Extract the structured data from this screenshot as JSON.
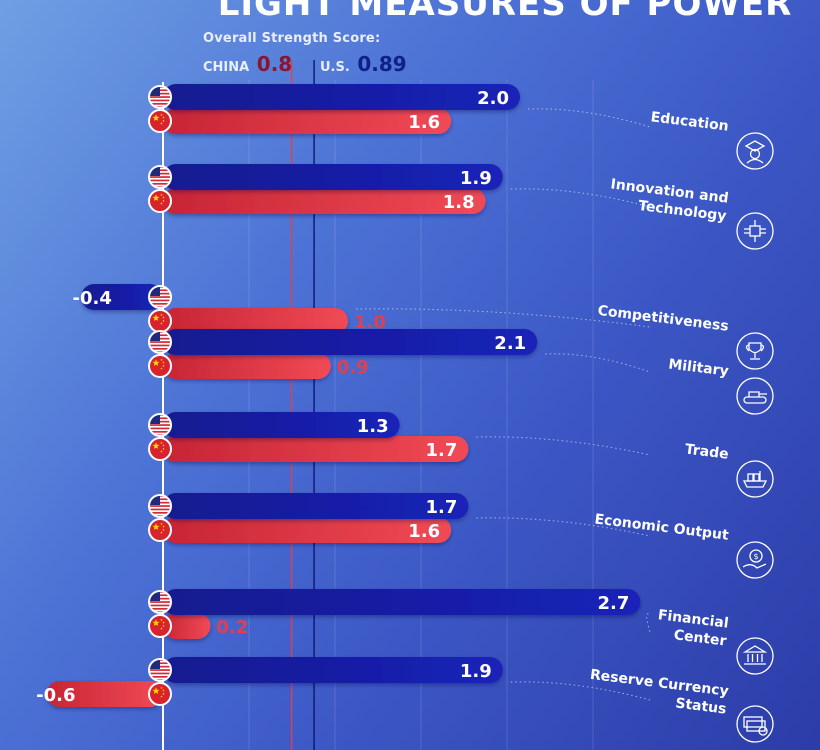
{
  "title": "LIGHT MEASURES OF POWER",
  "overall": {
    "label": "Overall Strength Score:",
    "china_name": "CHINA",
    "china_value": "0.8",
    "us_name": "U.S.",
    "us_value": "0.89"
  },
  "colors": {
    "us": "#1a22b8",
    "china": "#f04a55",
    "china_text": "#e0404e",
    "china_line": "#e0404e",
    "us_line": "#0c1670"
  },
  "chart_data": {
    "type": "bar",
    "categories": [
      "Education",
      "Innovation and Technology",
      "Competitiveness",
      "Military",
      "Trade",
      "Economic Output",
      "Financial Center",
      "Reserve Currency Status"
    ],
    "category_lines": [
      [
        "Education"
      ],
      [
        "Innovation and",
        "Technology"
      ],
      [
        "Competitiveness"
      ],
      [
        "Military"
      ],
      [
        "Trade"
      ],
      [
        "Economic Output"
      ],
      [
        "Financial",
        "Center"
      ],
      [
        "Reserve Currency",
        "Status"
      ]
    ],
    "icons": [
      "graduate-icon",
      "circuit-icon",
      "trophy-icon",
      "tank-icon",
      "cargo-ship-icon",
      "money-hand-icon",
      "bank-icon",
      "cash-stack-icon"
    ],
    "series": [
      {
        "name": "U.S.",
        "values": [
          2.0,
          1.9,
          -0.4,
          2.1,
          1.3,
          1.7,
          2.7,
          1.9
        ],
        "labels": [
          "2.0",
          "1.9",
          "-0.4",
          "2.1",
          "1.3",
          "1.7",
          "2.7",
          "1.9"
        ]
      },
      {
        "name": "China",
        "values": [
          1.6,
          1.8,
          1.0,
          0.9,
          1.7,
          1.6,
          0.2,
          -0.6
        ],
        "labels": [
          "1.6",
          "1.8",
          "1.0",
          "0.9",
          "1.7",
          "1.6",
          "0.2",
          "-0.6"
        ]
      }
    ],
    "reference_lines": [
      {
        "name": "China overall",
        "value": 0.8
      },
      {
        "name": "U.S. overall",
        "value": 0.89
      }
    ],
    "grid": true
  }
}
